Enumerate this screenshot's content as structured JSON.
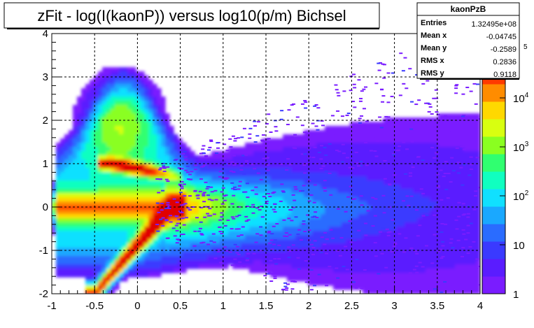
{
  "chart_data": {
    "type": "heatmap",
    "title": "zFit - log(I(kaonP)) versus log10(p/m) Bichsel",
    "xlabel": "",
    "ylabel": "",
    "xlim": [
      -1,
      4
    ],
    "ylim": [
      -2,
      4
    ],
    "x_ticks": [
      "-1",
      "-0.5",
      "0",
      "0.5",
      "1",
      "1.5",
      "2",
      "2.5",
      "3",
      "3.5",
      "4"
    ],
    "y_ticks": [
      "-2",
      "-1",
      "0",
      "1",
      "2",
      "3",
      "4"
    ],
    "grid": true,
    "z_scale": "log",
    "z_range": [
      1,
      100000
    ],
    "colorbar_ticks": [
      {
        "base": "1",
        "exp": "",
        "value": 1
      },
      {
        "base": "10",
        "exp": "",
        "value": 10
      },
      {
        "base": "10",
        "exp": "2",
        "value": 100
      },
      {
        "base": "10",
        "exp": "3",
        "value": 1000
      },
      {
        "base": "10",
        "exp": "4",
        "value": 10000
      }
    ],
    "colorbar_partial_label": "5",
    "stats_box": {
      "name": "kaonPzB",
      "rows": [
        {
          "label": "Entries",
          "value": "1.32495e+08"
        },
        {
          "label": "Mean x",
          "value": "-0.04745"
        },
        {
          "label": "Mean y",
          "value": "-0.2589"
        },
        {
          "label": "RMS x",
          "value": "0.2836"
        },
        {
          "label": "RMS y",
          "value": "0.9118"
        }
      ]
    },
    "palette": [
      "#7a1cff",
      "#5a1cff",
      "#3a3aff",
      "#2a6cff",
      "#1aa8ff",
      "#10e0ff",
      "#10ffc0",
      "#30ff70",
      "#8aff20",
      "#d8ff10",
      "#ffd800",
      "#ff8c00",
      "#ff3a00",
      "#e00000"
    ]
  }
}
